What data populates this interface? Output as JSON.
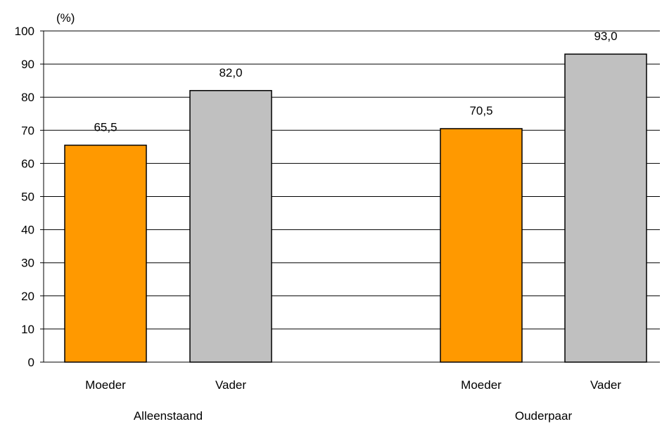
{
  "chart_data": {
    "type": "bar",
    "unit_label": "(%)",
    "ylim": [
      0,
      100
    ],
    "y_ticks": [
      "0",
      "10",
      "20",
      "30",
      "40",
      "50",
      "60",
      "70",
      "80",
      "90",
      "100"
    ],
    "grid": true,
    "groups": [
      {
        "name": "Alleenstaand",
        "bars": [
          {
            "category": "Moeder",
            "value": 65.5,
            "label": "65,5",
            "color": "#ff9900"
          },
          {
            "category": "Vader",
            "value": 82.0,
            "label": "82,0",
            "color": "#c0c0c0"
          }
        ]
      },
      {
        "name": "Ouderpaar",
        "bars": [
          {
            "category": "Moeder",
            "value": 70.5,
            "label": "70,5",
            "color": "#ff9900"
          },
          {
            "category": "Vader",
            "value": 93.0,
            "label": "93,0",
            "color": "#c0c0c0"
          }
        ]
      }
    ]
  }
}
